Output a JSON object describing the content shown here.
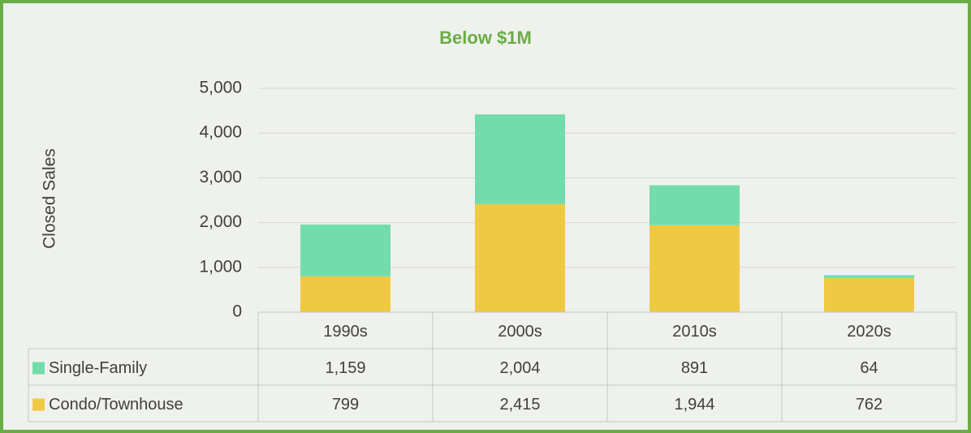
{
  "chart_data": {
    "type": "stacked_bar",
    "title": "Below $1M",
    "y_label": "Closed Sales",
    "categories": [
      "1990s",
      "2000s",
      "2010s",
      "2020s"
    ],
    "series": [
      {
        "name": "Single-Family",
        "color": "#73dcad",
        "values": [
          1159,
          2004,
          891,
          64
        ],
        "value_labels": [
          "1,159",
          "2,004",
          "891",
          "64"
        ]
      },
      {
        "name": "Condo/Townhouse",
        "color": "#efc942",
        "values": [
          799,
          2415,
          1944,
          762
        ],
        "value_labels": [
          "799",
          "2,415",
          "1,944",
          "762"
        ]
      }
    ],
    "ylim": [
      0,
      5000
    ],
    "yticks": [
      0,
      {
        "value": 1000,
        "label": "1,000"
      },
      {
        "value": 2000,
        "label": "2,000"
      },
      {
        "value": 3000,
        "label": "3,000"
      },
      {
        "value": 4000,
        "label": "4,000"
      },
      {
        "value": 5000,
        "label": "5,000"
      }
    ],
    "grid": true
  }
}
